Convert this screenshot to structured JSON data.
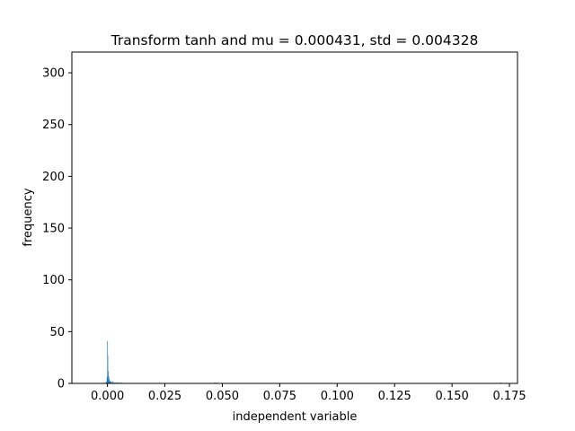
{
  "chart_data": {
    "type": "bar",
    "title": "Transform tanh and mu = 0.000431,  std = 0.004328",
    "xlabel": "independent variable",
    "ylabel": "frequency",
    "xlim": [
      -0.0155,
      0.1785
    ],
    "ylim": [
      0,
      320
    ],
    "xticks": [
      {
        "value": 0.0,
        "label": "0.000"
      },
      {
        "value": 0.025,
        "label": "0.025"
      },
      {
        "value": 0.05,
        "label": "0.050"
      },
      {
        "value": 0.075,
        "label": "0.075"
      },
      {
        "value": 0.1,
        "label": "0.100"
      },
      {
        "value": 0.125,
        "label": "0.125"
      },
      {
        "value": 0.15,
        "label": "0.150"
      },
      {
        "value": 0.175,
        "label": "0.175"
      }
    ],
    "yticks": [
      {
        "value": 0,
        "label": "0"
      },
      {
        "value": 50,
        "label": "50"
      },
      {
        "value": 100,
        "label": "100"
      },
      {
        "value": 150,
        "label": "150"
      },
      {
        "value": 200,
        "label": "200"
      },
      {
        "value": 250,
        "label": "250"
      },
      {
        "value": 300,
        "label": "300"
      }
    ],
    "bin_width": 0.00017,
    "bar_color": "#1f77b4",
    "grid": false,
    "bins": [
      {
        "x": -0.0008,
        "count": 1
      },
      {
        "x": -0.0005,
        "count": 2
      },
      {
        "x": -0.0003,
        "count": 6
      },
      {
        "x": -0.0001,
        "count": 41
      },
      {
        "x": 0.0,
        "count": 27
      },
      {
        "x": 0.0002,
        "count": 12
      },
      {
        "x": 0.0004,
        "count": 7
      },
      {
        "x": 0.0006,
        "count": 4
      },
      {
        "x": 0.0008,
        "count": 3
      },
      {
        "x": 0.0011,
        "count": 2
      },
      {
        "x": 0.0014,
        "count": 2
      },
      {
        "x": 0.0018,
        "count": 1
      },
      {
        "x": 0.0022,
        "count": 2
      },
      {
        "x": 0.0026,
        "count": 1
      },
      {
        "x": 0.0031,
        "count": 1
      },
      {
        "x": 0.0036,
        "count": 1
      },
      {
        "x": 0.0042,
        "count": 1
      },
      {
        "x": 0.005,
        "count": 1
      },
      {
        "x": 0.0062,
        "count": 1
      },
      {
        "x": 0.0468,
        "count": 1
      },
      {
        "x": 0.0475,
        "count": 1
      },
      {
        "x": 0.1712,
        "count": 1
      }
    ]
  }
}
